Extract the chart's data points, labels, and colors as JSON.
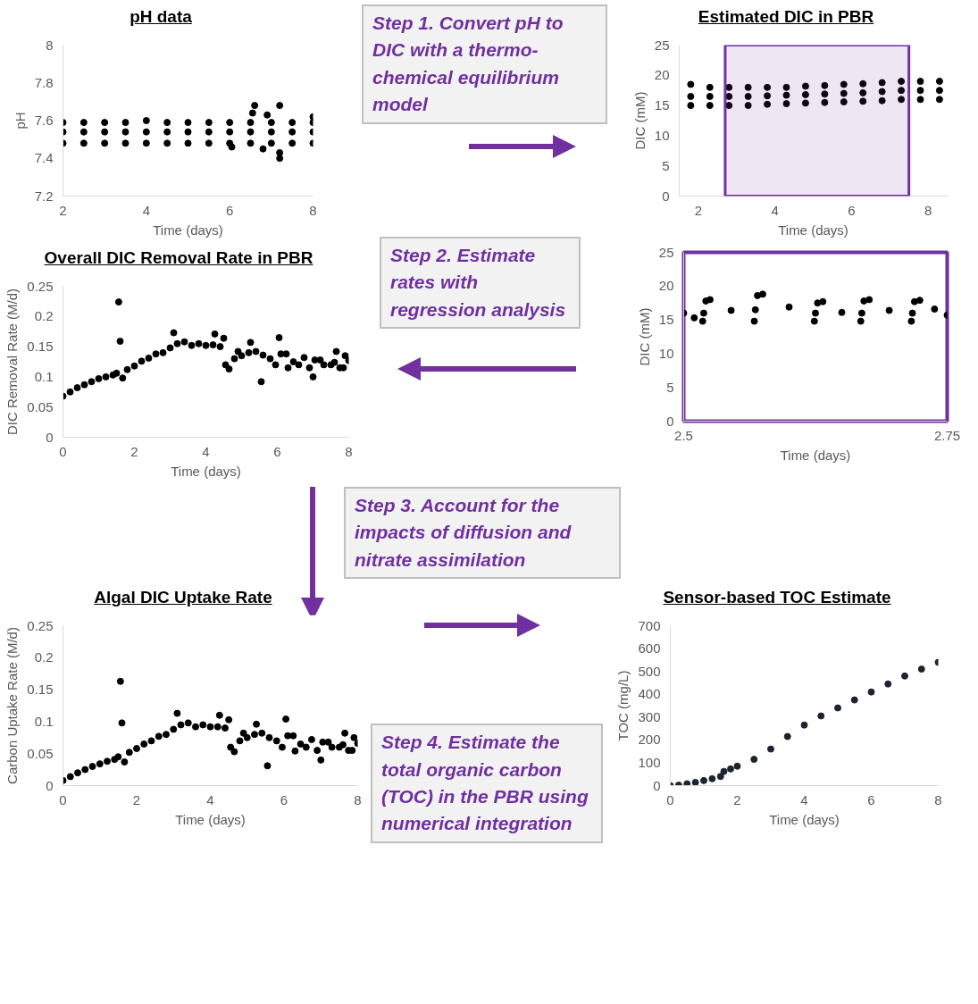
{
  "chart_data": [
    {
      "type": "scatter",
      "title": "pH data",
      "xlabel": "Time (days)",
      "ylabel": "pH",
      "color": "#000000",
      "marker": "circle",
      "xlim": [
        2,
        8
      ],
      "xticks": [
        2,
        4,
        6,
        8
      ],
      "ylim": [
        7.2,
        8
      ],
      "yticks": [
        7.2,
        7.4,
        7.6,
        7.8,
        8
      ],
      "x": [
        2,
        2,
        2,
        2.5,
        2.5,
        2.5,
        3,
        3,
        3,
        3.5,
        3.5,
        3.5,
        4,
        4,
        4,
        4.5,
        4.5,
        4.5,
        5,
        5,
        5,
        5.5,
        5.5,
        5.5,
        6,
        6,
        6,
        6.5,
        6.5,
        6.5,
        7,
        7,
        7,
        7.5,
        7.5,
        7.5,
        8,
        8,
        8,
        6.6,
        6.55,
        6.9,
        7.2,
        7.2,
        7.2,
        6.05,
        6.8,
        8
      ],
      "values": [
        7.59,
        7.54,
        7.48,
        7.59,
        7.54,
        7.48,
        7.59,
        7.54,
        7.48,
        7.59,
        7.54,
        7.48,
        7.6,
        7.54,
        7.48,
        7.59,
        7.54,
        7.48,
        7.59,
        7.54,
        7.48,
        7.59,
        7.54,
        7.48,
        7.59,
        7.54,
        7.48,
        7.59,
        7.54,
        7.48,
        7.59,
        7.54,
        7.48,
        7.59,
        7.54,
        7.48,
        7.59,
        7.54,
        7.48,
        7.68,
        7.64,
        7.63,
        7.68,
        7.4,
        7.43,
        7.46,
        7.45,
        7.62
      ]
    },
    {
      "type": "scatter",
      "title": "Estimated DIC in PBR",
      "xlabel": "Time (days)",
      "ylabel": "DIC (mM)",
      "color": "#000000",
      "marker": "circle",
      "xlim": [
        1.5,
        8.5
      ],
      "xticks": [
        2,
        4,
        6,
        8
      ],
      "ylim": [
        0,
        25
      ],
      "yticks": [
        0,
        5,
        10,
        15,
        20,
        25
      ],
      "bands": [
        {
          "axis": "x",
          "from": 2.7,
          "to": 7.5,
          "color": "#7030a0"
        }
      ],
      "x": [
        1.8,
        1.8,
        1.8,
        2.3,
        2.3,
        2.3,
        2.8,
        2.8,
        2.8,
        3.3,
        3.3,
        3.3,
        3.8,
        3.8,
        3.8,
        4.3,
        4.3,
        4.3,
        4.8,
        4.8,
        4.8,
        5.3,
        5.3,
        5.3,
        5.8,
        5.8,
        5.8,
        6.3,
        6.3,
        6.3,
        6.8,
        6.8,
        6.8,
        7.3,
        7.3,
        7.3,
        7.8,
        7.8,
        7.8,
        8.3,
        8.3,
        8.3
      ],
      "values": [
        18.5,
        16.5,
        15,
        18,
        16.5,
        15,
        18,
        16.5,
        15,
        18,
        16.5,
        15,
        18,
        16.6,
        15.2,
        18,
        16.7,
        15.3,
        18.2,
        16.8,
        15.4,
        18.3,
        16.9,
        15.5,
        18.5,
        17,
        15.6,
        18.6,
        17.1,
        15.7,
        18.8,
        17.3,
        15.8,
        19,
        17.5,
        16,
        19,
        17.5,
        16,
        19,
        17.5,
        16
      ]
    },
    {
      "type": "scatter",
      "title": "Overall DIC Removal Rate in PBR",
      "xlabel": "Time (days)",
      "ylabel": "DIC Removal Rate (M/d)",
      "color": "#000000",
      "marker": "circle",
      "xlim": [
        0,
        8
      ],
      "xticks": [
        0,
        2,
        4,
        6,
        8
      ],
      "ylim": [
        0,
        0.25
      ],
      "yticks": [
        0,
        0.05,
        0.1,
        0.15,
        0.2,
        0.25
      ],
      "x": [
        0,
        0.2,
        0.4,
        0.6,
        0.8,
        1.0,
        1.2,
        1.4,
        1.5,
        1.56,
        1.6,
        1.67,
        1.8,
        2.0,
        2.2,
        2.4,
        2.6,
        2.8,
        3.0,
        3.1,
        3.2,
        3.4,
        3.6,
        3.8,
        4.0,
        4.2,
        4.25,
        4.4,
        4.5,
        4.55,
        4.65,
        4.8,
        4.9,
        5.0,
        5.2,
        5.25,
        5.4,
        5.55,
        5.6,
        5.8,
        5.95,
        6.05,
        6.1,
        6.25,
        6.3,
        6.45,
        6.6,
        6.75,
        6.9,
        7.0,
        7.05,
        7.2,
        7.3,
        7.5,
        7.6,
        7.65,
        7.75,
        7.85,
        7.9,
        8.0
      ],
      "values": [
        0.068,
        0.075,
        0.082,
        0.087,
        0.092,
        0.097,
        0.1,
        0.103,
        0.106,
        0.224,
        0.159,
        0.098,
        0.112,
        0.118,
        0.126,
        0.131,
        0.138,
        0.14,
        0.148,
        0.173,
        0.155,
        0.158,
        0.152,
        0.155,
        0.152,
        0.153,
        0.171,
        0.15,
        0.164,
        0.12,
        0.113,
        0.13,
        0.142,
        0.135,
        0.14,
        0.157,
        0.142,
        0.092,
        0.136,
        0.13,
        0.12,
        0.165,
        0.138,
        0.138,
        0.115,
        0.125,
        0.12,
        0.132,
        0.115,
        0.1,
        0.128,
        0.128,
        0.12,
        0.12,
        0.124,
        0.142,
        0.115,
        0.115,
        0.135,
        0.127
      ]
    },
    {
      "type": "scatter",
      "xlabel": "Time (days)",
      "ylabel": "DIC (mM)",
      "color": "#000000",
      "marker": "circle",
      "xlim": [
        2.5,
        2.75
      ],
      "xticks": [
        2.5,
        2.75
      ],
      "ylim": [
        0,
        25
      ],
      "yticks": [
        0,
        5,
        10,
        15,
        20,
        25
      ],
      "x": [
        2.5,
        2.51,
        2.518,
        2.519,
        2.521,
        2.525,
        2.545,
        2.567,
        2.568,
        2.57,
        2.575,
        2.6,
        2.624,
        2.625,
        2.627,
        2.632,
        2.65,
        2.668,
        2.669,
        2.671,
        2.676,
        2.695,
        2.716,
        2.717,
        2.719,
        2.724,
        2.738,
        2.75
      ],
      "values": [
        16,
        15.3,
        14.8,
        16,
        17.8,
        18,
        16.4,
        14.8,
        16.5,
        18.6,
        18.8,
        16.9,
        14.8,
        16,
        17.5,
        17.7,
        16.1,
        14.8,
        16,
        17.8,
        18,
        16.4,
        14.8,
        16,
        17.7,
        17.9,
        16.6,
        15.7
      ]
    },
    {
      "type": "scatter",
      "title": "Algal DIC Uptake Rate",
      "xlabel": "Time (days)",
      "ylabel": "Carbon Uptake Rate (M/d)",
      "color": "#000000",
      "marker": "circle",
      "xlim": [
        0,
        8
      ],
      "xticks": [
        0,
        2,
        4,
        6,
        8
      ],
      "ylim": [
        0,
        0.25
      ],
      "yticks": [
        0,
        0.05,
        0.1,
        0.15,
        0.2,
        0.25
      ],
      "x": [
        0,
        0.2,
        0.4,
        0.6,
        0.8,
        1.0,
        1.2,
        1.4,
        1.5,
        1.56,
        1.6,
        1.67,
        1.8,
        2.0,
        2.2,
        2.4,
        2.6,
        2.8,
        3.0,
        3.1,
        3.2,
        3.4,
        3.6,
        3.8,
        4.0,
        4.2,
        4.25,
        4.4,
        4.5,
        4.55,
        4.65,
        4.8,
        4.9,
        5.0,
        5.2,
        5.25,
        5.4,
        5.55,
        5.6,
        5.8,
        5.95,
        6.05,
        6.1,
        6.25,
        6.3,
        6.45,
        6.6,
        6.75,
        6.9,
        7.0,
        7.05,
        7.2,
        7.3,
        7.5,
        7.6,
        7.65,
        7.75,
        7.85,
        7.9,
        8.0
      ],
      "values": [
        0.008,
        0.014,
        0.02,
        0.025,
        0.03,
        0.034,
        0.038,
        0.041,
        0.045,
        0.163,
        0.098,
        0.037,
        0.052,
        0.058,
        0.065,
        0.07,
        0.077,
        0.08,
        0.088,
        0.113,
        0.095,
        0.098,
        0.092,
        0.095,
        0.092,
        0.092,
        0.11,
        0.09,
        0.103,
        0.06,
        0.053,
        0.07,
        0.082,
        0.075,
        0.08,
        0.096,
        0.082,
        0.031,
        0.075,
        0.07,
        0.06,
        0.104,
        0.078,
        0.078,
        0.054,
        0.065,
        0.06,
        0.072,
        0.055,
        0.04,
        0.068,
        0.068,
        0.06,
        0.06,
        0.064,
        0.082,
        0.055,
        0.055,
        0.075,
        0.066
      ]
    },
    {
      "type": "scatter",
      "title": "Sensor-based TOC Estimate",
      "xlabel": "Time (days)",
      "ylabel": "TOC (mg/L)",
      "color": "#1c2430",
      "marker": "circle",
      "xlim": [
        0,
        8
      ],
      "xticks": [
        0,
        2,
        4,
        6,
        8
      ],
      "ylim": [
        0,
        700
      ],
      "yticks": [
        0,
        100,
        200,
        300,
        400,
        500,
        600,
        700
      ],
      "x": [
        0,
        0.25,
        0.5,
        0.75,
        1.0,
        1.25,
        1.5,
        1.6,
        1.8,
        2.0,
        2.5,
        3.0,
        3.5,
        4.0,
        4.5,
        5.0,
        5.5,
        6.0,
        6.5,
        7.0,
        7.5,
        8.0
      ],
      "values": [
        0,
        2,
        8,
        14,
        22,
        30,
        40,
        62,
        73,
        85,
        115,
        160,
        215,
        265,
        305,
        340,
        375,
        410,
        445,
        480,
        510,
        540
      ]
    },
    {
      "type": "other",
      "annotations": [
        "Step 1. Convert pH to DIC with a thermo-chemical equilibrium model",
        "Step 2. Estimate rates with regression analysis",
        "Step 3. Account for the impacts of diffusion and nitrate assimilation",
        "Step 4. Estimate the total organic carbon (TOC) in the PBR using numerical integration"
      ]
    }
  ]
}
